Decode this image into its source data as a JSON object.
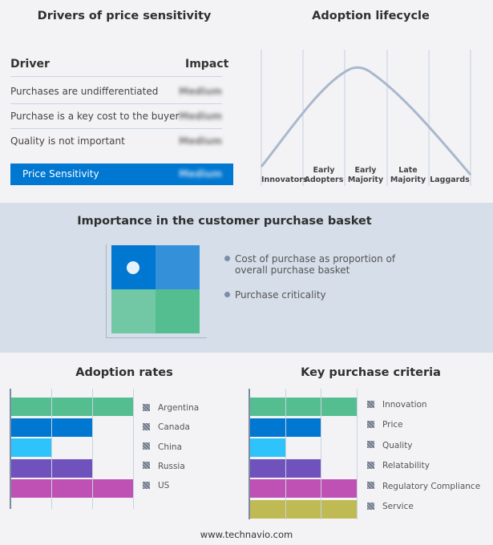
{
  "drivers": {
    "title": "Drivers of price sensitivity",
    "col_driver": "Driver",
    "col_impact": "Impact",
    "rows": [
      {
        "driver": "Purchases are undifferentiated",
        "impact": "Medium"
      },
      {
        "driver": "Purchase is a key cost to the buyer",
        "impact": "Medium"
      },
      {
        "driver": "Quality is not important",
        "impact": "Medium"
      }
    ],
    "summary": {
      "driver": "Price Sensitivity",
      "impact": "Medium"
    },
    "accent": "#0077d0"
  },
  "lifecycle": {
    "title": "Adoption lifecycle",
    "stages": [
      [
        "Innovators"
      ],
      [
        "Early",
        "Adopters"
      ],
      [
        "Early",
        "Majority"
      ],
      [
        "Late",
        "Majority"
      ],
      [
        "Laggards"
      ]
    ]
  },
  "basket": {
    "title": "Importance in the customer purchase basket",
    "legend": [
      "Cost of purchase as proportion of",
      "overall purchase basket",
      "Purchase criticality"
    ],
    "quadrant_colors": [
      "#0077d0",
      "#3590da",
      "#72c7a4",
      "#55be91"
    ],
    "marker_quadrant": "top-left"
  },
  "chart_data": [
    {
      "type": "bar",
      "orientation": "horizontal",
      "title": "Adoption rates",
      "categories": [
        "Argentina",
        "Canada",
        "China",
        "Russia",
        "US"
      ],
      "values": [
        3,
        2,
        1,
        2,
        3
      ],
      "xlim": [
        0,
        3
      ],
      "grid": true,
      "legend_placement": "right",
      "colors": [
        "#55be91",
        "#0077d0",
        "#2ec4fb",
        "#7052bd",
        "#bf51b5"
      ]
    },
    {
      "type": "bar",
      "orientation": "horizontal",
      "title": "Key purchase criteria",
      "categories": [
        "Innovation",
        "Price",
        "Quality",
        "Relatability",
        "Regulatory Compliance",
        "Service"
      ],
      "values": [
        3,
        2,
        1,
        2,
        3,
        3
      ],
      "xlim": [
        0,
        3
      ],
      "grid": true,
      "legend_placement": "right",
      "colors": [
        "#55be91",
        "#0077d0",
        "#2ec4fb",
        "#7052bd",
        "#bf51b5",
        "#c0ba55"
      ]
    }
  ],
  "footer": "www.technavio.com"
}
